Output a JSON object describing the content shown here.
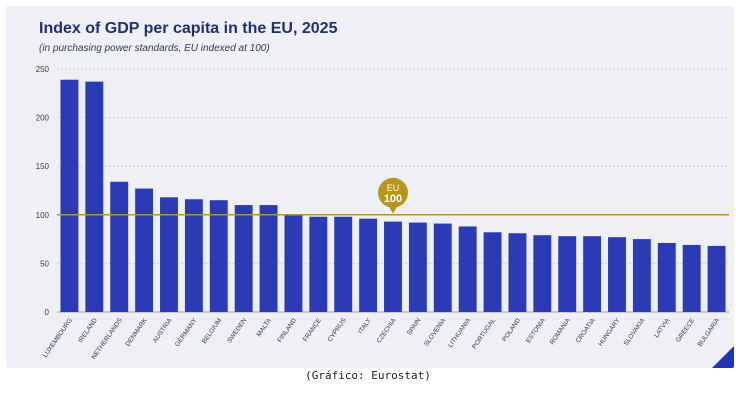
{
  "chart_data": {
    "type": "bar",
    "title": "Index of GDP per capita in the EU, 2025",
    "subtitle": "(in purchasing power standards, EU indexed at 100)",
    "categories": [
      "LUXEMBOURG",
      "IRELAND",
      "NETHERLANDS",
      "DENMARK",
      "AUSTRIA",
      "GERMANY",
      "BELGIUM",
      "SWEDEN",
      "MALTA",
      "FINLAND",
      "FRANCE",
      "CYPRUS",
      "ITALY",
      "CZECHIA",
      "SPAIN",
      "SLOVENIA",
      "LITHUANIA",
      "PORTUGAL",
      "POLAND",
      "ESTONIA",
      "ROMANIA",
      "CROATIA",
      "HUNGARY",
      "SLOVAKIA",
      "LATVIA",
      "GREECE",
      "BULGARIA"
    ],
    "values": [
      239,
      237,
      134,
      127,
      118,
      116,
      115,
      110,
      110,
      100,
      98,
      98,
      96,
      93,
      92,
      91,
      88,
      82,
      81,
      79,
      78,
      78,
      77,
      75,
      71,
      69,
      68
    ],
    "yticks": [
      0,
      50,
      100,
      150,
      200,
      250
    ],
    "ylim": [
      0,
      250
    ],
    "grid": true,
    "reference_line": {
      "value": 100,
      "label_top": "EU",
      "label_bottom": "100",
      "color": "#b8961c"
    },
    "bar_color": "#2a3bb5",
    "xlabel": "",
    "ylabel": ""
  },
  "caption": "(Gráfico: Eurostat)"
}
